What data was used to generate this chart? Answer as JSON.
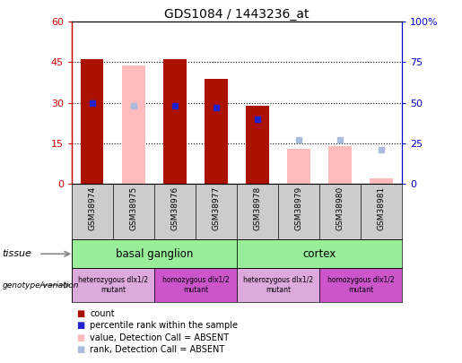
{
  "title": "GDS1084 / 1443236_at",
  "samples": [
    "GSM38974",
    "GSM38975",
    "GSM38976",
    "GSM38977",
    "GSM38978",
    "GSM38979",
    "GSM38980",
    "GSM38981"
  ],
  "count_values": [
    46,
    null,
    46,
    39,
    29,
    null,
    null,
    null
  ],
  "count_absent_values": [
    null,
    44,
    null,
    null,
    null,
    13,
    14,
    2
  ],
  "rank_values": [
    50,
    null,
    48,
    47,
    40,
    null,
    null,
    null
  ],
  "rank_absent_values": [
    null,
    48,
    null,
    null,
    null,
    27,
    27,
    21
  ],
  "ylim_left": [
    0,
    60
  ],
  "ylim_right": [
    0,
    100
  ],
  "yticks_left": [
    0,
    15,
    30,
    45,
    60
  ],
  "yticks_right": [
    0,
    25,
    50,
    75,
    100
  ],
  "ytick_labels_left": [
    "0",
    "15",
    "30",
    "45",
    "60"
  ],
  "ytick_labels_right": [
    "0",
    "25",
    "50",
    "75",
    "100%"
  ],
  "color_count": "#aa1100",
  "color_count_absent": "#ffbbbb",
  "color_rank": "#2222cc",
  "color_rank_absent": "#aabbdd",
  "tissue_labels": [
    "basal ganglion",
    "cortex"
  ],
  "tissue_ranges": [
    [
      0,
      4
    ],
    [
      4,
      8
    ]
  ],
  "tissue_color": "#99ee99",
  "genotype_labels": [
    "heterozygous dlx1/2\nmutant",
    "homozygous dlx1/2\nmutant",
    "heterozygous dlx1/2\nmutant",
    "homozygous dlx1/2\nmutant"
  ],
  "genotype_ranges": [
    [
      0,
      2
    ],
    [
      2,
      4
    ],
    [
      4,
      6
    ],
    [
      6,
      8
    ]
  ],
  "genotype_colors": [
    "#ddaadd",
    "#cc55cc",
    "#ddaadd",
    "#cc55cc"
  ],
  "legend_items": [
    {
      "label": "count",
      "color": "#aa1100"
    },
    {
      "label": "percentile rank within the sample",
      "color": "#2222cc"
    },
    {
      "label": "value, Detection Call = ABSENT",
      "color": "#ffbbbb"
    },
    {
      "label": "rank, Detection Call = ABSENT",
      "color": "#aabbdd"
    }
  ],
  "axis_label_color_left": "#cc0000",
  "axis_label_color_right": "#0000cc",
  "sample_bg": "#cccccc",
  "chart_border": "#888888"
}
